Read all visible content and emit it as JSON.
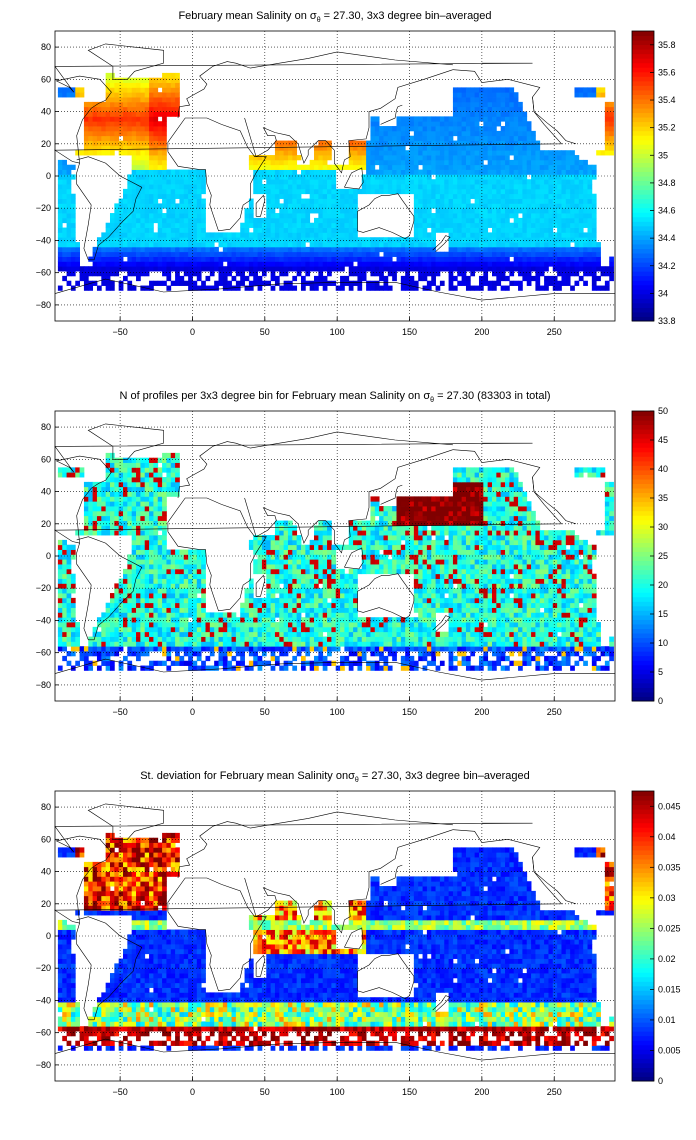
{
  "chart_data": [
    {
      "type": "heatmap",
      "title": {
        "pre": "February mean Salinity on ",
        "symbol": "σ",
        "sub": "θ",
        "post": " = 27.30, 3x3 degree bin–averaged"
      },
      "xlabel": "",
      "ylabel": "",
      "xlim": [
        -95,
        292
      ],
      "ylim": [
        -90,
        90
      ],
      "x_ticks": [
        -50,
        0,
        50,
        100,
        150,
        200,
        250
      ],
      "y_ticks": [
        80,
        60,
        40,
        20,
        0,
        -20,
        -40,
        -60,
        -80
      ],
      "grid": true,
      "colorscale": "jet",
      "colorbar": {
        "min": 33.8,
        "max": 35.9,
        "ticks": [
          "33.8",
          "34",
          "34.2",
          "34.4",
          "34.6",
          "34.8",
          "35",
          "35.2",
          "35.4",
          "35.6",
          "35.8"
        ],
        "tick_values": [
          33.8,
          34.0,
          34.2,
          34.4,
          34.6,
          34.8,
          35.0,
          35.2,
          35.4,
          35.6,
          35.8
        ]
      },
      "field": "salinity"
    },
    {
      "type": "heatmap",
      "title": {
        "pre": "N of profiles per 3x3 degree bin for February mean Salinity on ",
        "symbol": "σ",
        "sub": "θ",
        "post": " = 27.30 (83303 in total)"
      },
      "xlabel": "",
      "ylabel": "",
      "xlim": [
        -95,
        292
      ],
      "ylim": [
        -90,
        90
      ],
      "x_ticks": [
        -50,
        0,
        50,
        100,
        150,
        200,
        250
      ],
      "y_ticks": [
        80,
        60,
        40,
        20,
        0,
        -20,
        -40,
        -60,
        -80
      ],
      "grid": true,
      "colorscale": "jet",
      "colorbar": {
        "min": 0,
        "max": 50,
        "ticks": [
          "0",
          "5",
          "10",
          "15",
          "20",
          "25",
          "30",
          "35",
          "40",
          "45",
          "50"
        ],
        "tick_values": [
          0,
          5,
          10,
          15,
          20,
          25,
          30,
          35,
          40,
          45,
          50
        ]
      },
      "field": "count"
    },
    {
      "type": "heatmap",
      "title": {
        "pre": "St. deviation for February mean Salinity on",
        "symbol": "σ",
        "sub": "θ",
        "post": " = 27.30, 3x3 degree bin–averaged"
      },
      "xlabel": "",
      "ylabel": "",
      "xlim": [
        -95,
        292
      ],
      "ylim": [
        -90,
        90
      ],
      "x_ticks": [
        -50,
        0,
        50,
        100,
        150,
        200,
        250
      ],
      "y_ticks": [
        80,
        60,
        40,
        20,
        0,
        -20,
        -40,
        -60,
        -80
      ],
      "grid": true,
      "colorscale": "jet",
      "colorbar": {
        "min": 0,
        "max": 0.0475,
        "ticks": [
          "0",
          "0.005",
          "0.01",
          "0.015",
          "0.02",
          "0.025",
          "0.03",
          "0.035",
          "0.04",
          "0.045"
        ],
        "tick_values": [
          0,
          0.005,
          0.01,
          0.015,
          0.02,
          0.025,
          0.03,
          0.035,
          0.04,
          0.045
        ]
      },
      "field": "stdev"
    }
  ]
}
